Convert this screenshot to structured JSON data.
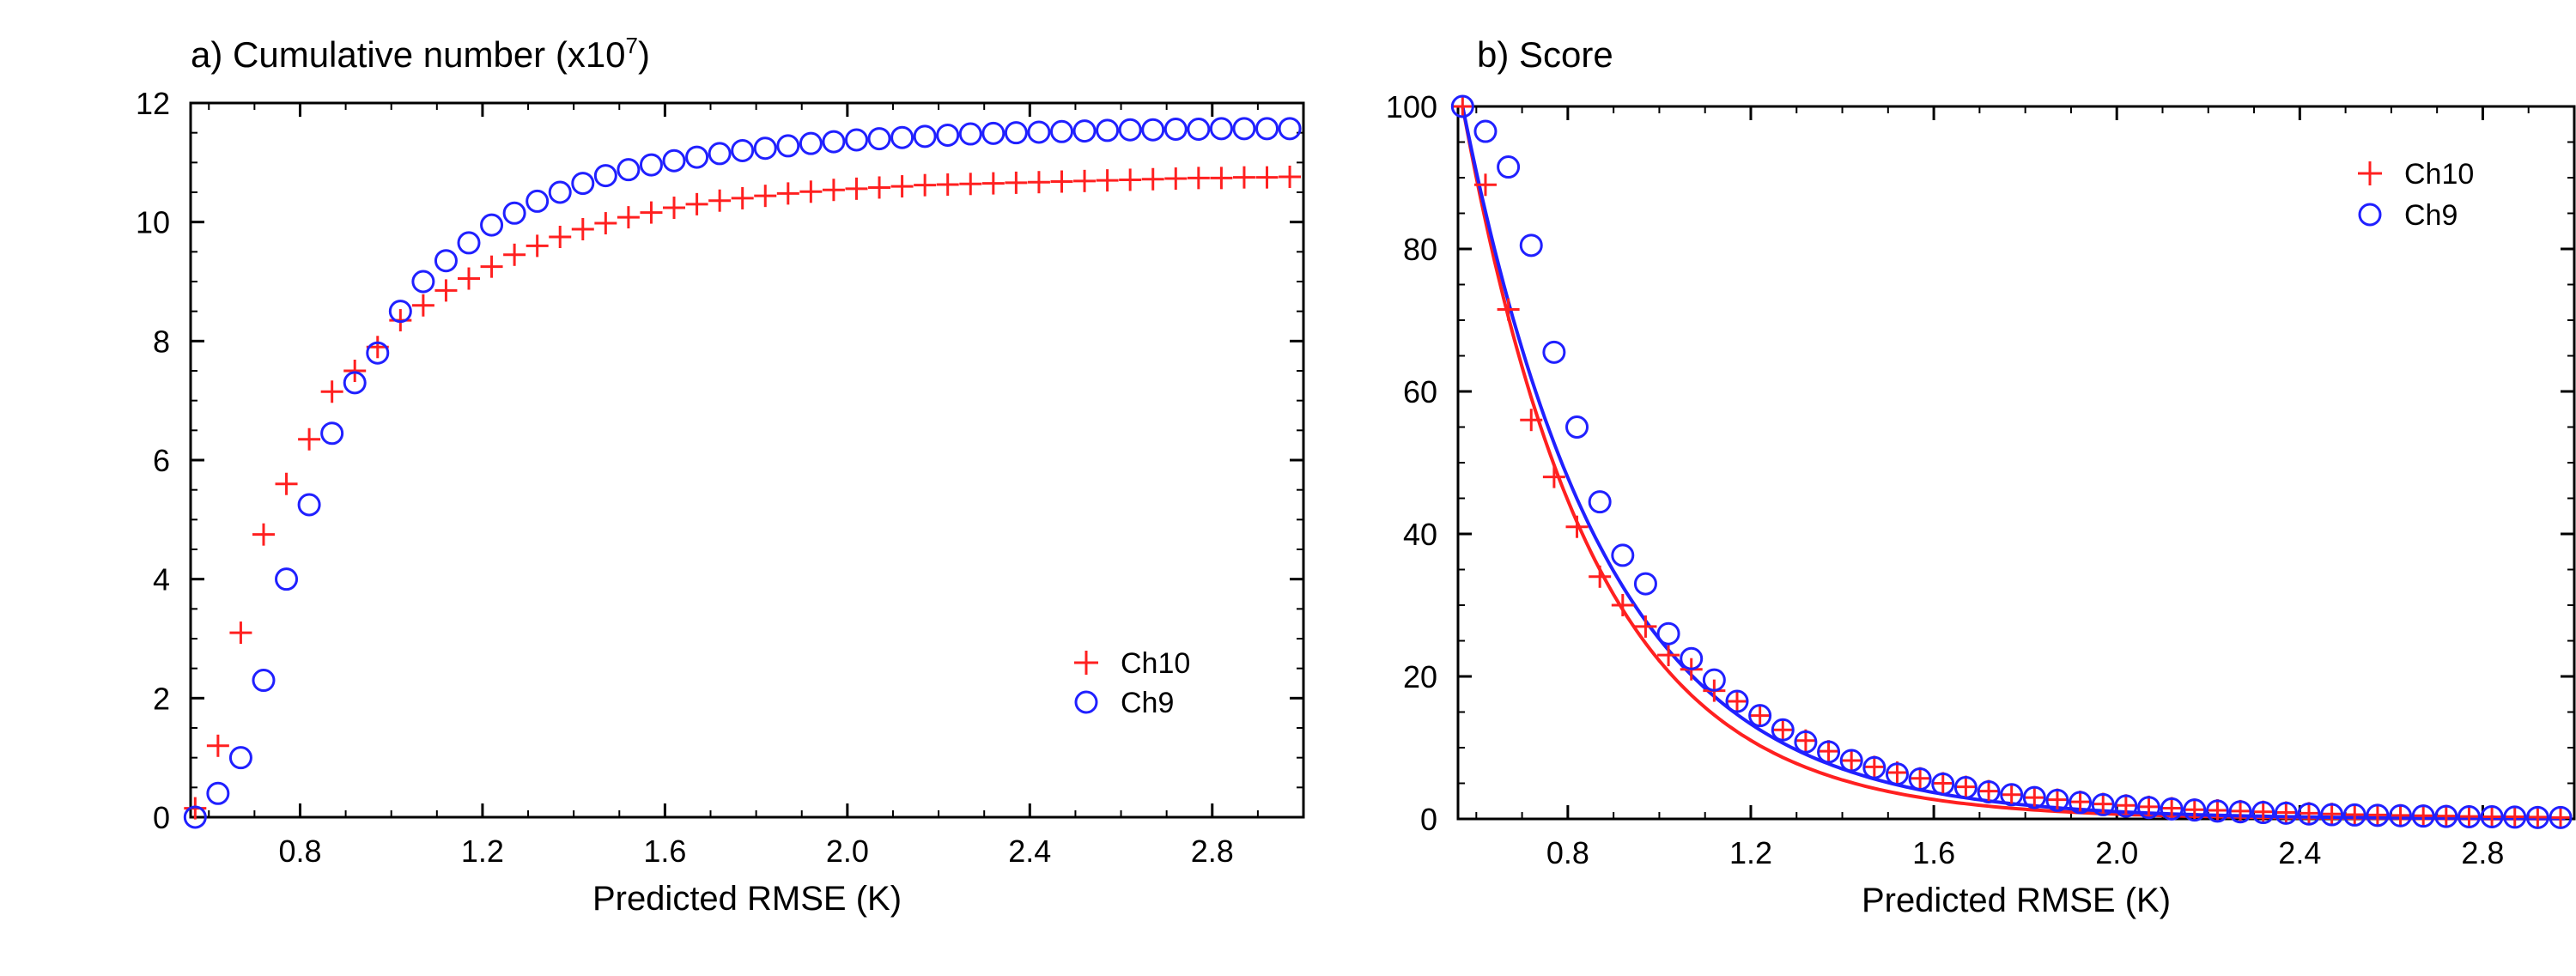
{
  "chart_data": [
    {
      "type": "scatter",
      "panel": "a",
      "title_prefix": "a) Cumulative number (x10",
      "title_exponent": "7",
      "title_suffix": ")",
      "xlabel": "Predicted RMSE (K)",
      "ylabel": "",
      "xlim": [
        0.56,
        3.0
      ],
      "ylim": [
        0,
        12
      ],
      "xticks": [
        0.8,
        1.2,
        1.6,
        2.0,
        2.4,
        2.8
      ],
      "xtick_labels": [
        "0.8",
        "1.2",
        "1.6",
        "2.0",
        "2.4",
        "2.8"
      ],
      "yticks": [
        0,
        2,
        4,
        6,
        8,
        10,
        12
      ],
      "ytick_labels": [
        "0",
        "2",
        "4",
        "6",
        "8",
        "10",
        "12"
      ],
      "grid": false,
      "legend_position": "bottom-right",
      "x": [
        0.57,
        0.62,
        0.67,
        0.72,
        0.77,
        0.82,
        0.87,
        0.92,
        0.97,
        1.02,
        1.07,
        1.12,
        1.17,
        1.22,
        1.27,
        1.32,
        1.37,
        1.42,
        1.47,
        1.52,
        1.57,
        1.62,
        1.67,
        1.72,
        1.77,
        1.82,
        1.87,
        1.92,
        1.97,
        2.02,
        2.07,
        2.12,
        2.17,
        2.22,
        2.27,
        2.32,
        2.37,
        2.42,
        2.47,
        2.52,
        2.57,
        2.62,
        2.67,
        2.72,
        2.77,
        2.82,
        2.87,
        2.92,
        2.97
      ],
      "series": [
        {
          "name": "Ch10",
          "marker": "plus",
          "color": "#ff2020",
          "values": [
            0.15,
            1.2,
            3.1,
            4.75,
            5.6,
            6.35,
            7.15,
            7.5,
            7.9,
            8.35,
            8.6,
            8.85,
            9.05,
            9.25,
            9.45,
            9.6,
            9.75,
            9.88,
            9.98,
            10.08,
            10.16,
            10.24,
            10.3,
            10.36,
            10.4,
            10.44,
            10.48,
            10.51,
            10.54,
            10.56,
            10.58,
            10.6,
            10.62,
            10.63,
            10.64,
            10.65,
            10.66,
            10.67,
            10.68,
            10.69,
            10.7,
            10.71,
            10.72,
            10.73,
            10.74,
            10.74,
            10.75,
            10.75,
            10.76
          ]
        },
        {
          "name": "Ch9",
          "marker": "circle",
          "color": "#2020ff",
          "values": [
            0.0,
            0.4,
            1.0,
            2.3,
            4.0,
            5.25,
            6.45,
            7.3,
            7.8,
            8.5,
            9.0,
            9.35,
            9.65,
            9.95,
            10.15,
            10.35,
            10.5,
            10.65,
            10.78,
            10.88,
            10.96,
            11.03,
            11.09,
            11.15,
            11.2,
            11.24,
            11.28,
            11.32,
            11.35,
            11.38,
            11.4,
            11.42,
            11.44,
            11.46,
            11.48,
            11.49,
            11.5,
            11.51,
            11.52,
            11.53,
            11.54,
            11.55,
            11.55,
            11.56,
            11.56,
            11.57,
            11.57,
            11.57,
            11.57
          ]
        }
      ]
    },
    {
      "type": "scatter",
      "panel": "b",
      "title": "b) Score",
      "xlabel": "Predicted RMSE (K)",
      "ylabel": "",
      "xlim": [
        0.56,
        3.0
      ],
      "ylim": [
        0,
        100
      ],
      "xticks": [
        0.8,
        1.2,
        1.6,
        2.0,
        2.4,
        2.8
      ],
      "xtick_labels": [
        "0.8",
        "1.2",
        "1.6",
        "2.0",
        "2.4",
        "2.8"
      ],
      "yticks": [
        0,
        20,
        40,
        60,
        80,
        100
      ],
      "ytick_labels": [
        "0",
        "20",
        "40",
        "60",
        "80",
        "100"
      ],
      "grid": false,
      "legend_position": "top-right",
      "x": [
        0.57,
        0.62,
        0.67,
        0.72,
        0.77,
        0.82,
        0.87,
        0.92,
        0.97,
        1.02,
        1.07,
        1.12,
        1.17,
        1.22,
        1.27,
        1.32,
        1.37,
        1.42,
        1.47,
        1.52,
        1.57,
        1.62,
        1.67,
        1.72,
        1.77,
        1.82,
        1.87,
        1.92,
        1.97,
        2.02,
        2.07,
        2.12,
        2.17,
        2.22,
        2.27,
        2.32,
        2.37,
        2.42,
        2.47,
        2.52,
        2.57,
        2.62,
        2.67,
        2.72,
        2.77,
        2.82,
        2.87,
        2.92,
        2.97
      ],
      "series": [
        {
          "name": "Ch10",
          "marker": "plus",
          "color": "#ff2020",
          "values": [
            100,
            89,
            71.5,
            56,
            48,
            41,
            34,
            30,
            27,
            23,
            21,
            18,
            16.5,
            14.5,
            12.5,
            11,
            9.5,
            8.2,
            7.3,
            6.5,
            5.7,
            5.0,
            4.5,
            3.9,
            3.4,
            3.0,
            2.7,
            2.4,
            2.1,
            1.9,
            1.7,
            1.5,
            1.3,
            1.2,
            1.1,
            1.0,
            0.9,
            0.8,
            0.7,
            0.6,
            0.55,
            0.5,
            0.45,
            0.4,
            0.35,
            0.3,
            0.3,
            0.25,
            0.2
          ]
        },
        {
          "name": "Ch9",
          "marker": "circle",
          "color": "#2020ff",
          "values": [
            100,
            96.5,
            91.5,
            80.5,
            65.5,
            55,
            44.5,
            37,
            33,
            26,
            22.5,
            19.5,
            16.5,
            14.5,
            12.5,
            10.8,
            9.4,
            8.2,
            7.2,
            6.3,
            5.6,
            4.9,
            4.4,
            3.8,
            3.4,
            3.0,
            2.6,
            2.3,
            2.0,
            1.8,
            1.6,
            1.4,
            1.25,
            1.1,
            1.0,
            0.9,
            0.8,
            0.7,
            0.6,
            0.55,
            0.5,
            0.45,
            0.4,
            0.35,
            0.3,
            0.3,
            0.25,
            0.2,
            0.2
          ]
        }
      ],
      "fit_curves": [
        {
          "name": "Ch10 fit",
          "color": "#ff2020",
          "x0": 0.57,
          "y0": 100,
          "decay_rate": 3.5
        },
        {
          "name": "Ch9 fit",
          "color": "#2020ff",
          "x0": 0.57,
          "y0": 100,
          "decay_rate": 3.2
        }
      ]
    }
  ]
}
